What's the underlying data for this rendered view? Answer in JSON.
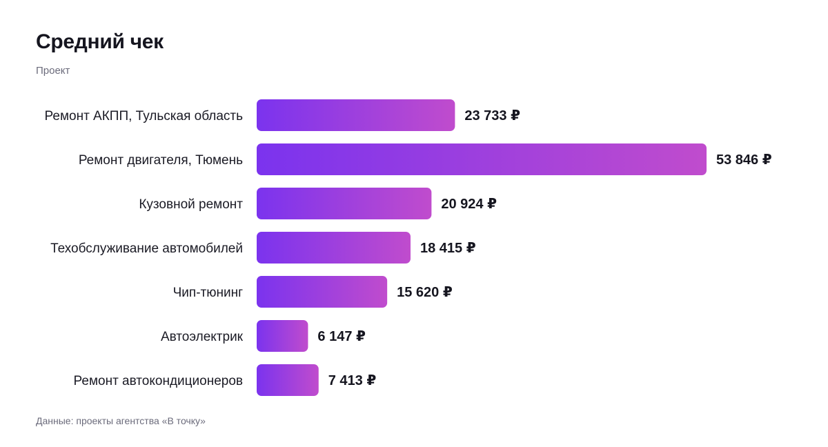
{
  "title": "Средний чек",
  "subtitle": "Проект",
  "footer": "Данные: проекты агентства «В точку»",
  "colors": {
    "bar_start": "#7b33ee",
    "bar_end": "#c04ccd",
    "text": "#15151f",
    "muted": "#6b6b7b"
  },
  "chart_data": {
    "type": "bar",
    "orientation": "horizontal",
    "currency": "₽",
    "categories": [
      "Ремонт АКПП, Тульская область",
      "Ремонт двигателя, Тюмень",
      "Кузовной ремонт",
      "Техобслуживание автомобилей",
      "Чип-тюнинг",
      "Автоэлектрик",
      "Ремонт автокондиционеров"
    ],
    "values": [
      23733,
      53846,
      20924,
      18415,
      15620,
      6147,
      7413
    ],
    "value_labels": [
      "23 733",
      "53 846",
      "20 924",
      "18 415",
      "15 620",
      "6 147",
      "7 413"
    ],
    "xlim": [
      0,
      53846
    ],
    "grid": false,
    "legend": "none"
  }
}
